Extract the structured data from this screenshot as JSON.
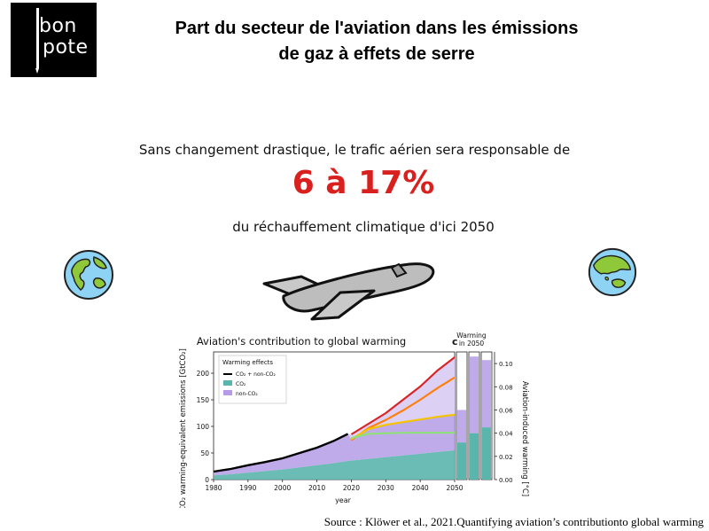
{
  "logo": {
    "line1": "bon",
    "line2": "pote"
  },
  "title": {
    "line1": "Part du secteur de l'aviation dans les émissions",
    "line2": "de gaz à effets de serre"
  },
  "lead_text": "Sans changement drastique, le trafic aérien sera responsable de",
  "highlight": "6 à 17%",
  "tail_text": "du réchauffement climatique d'ici 2050",
  "colors": {
    "highlight": "#d8201e",
    "co2": "#5ab5ac",
    "non_co2": "#b49be6",
    "total": "#000000"
  },
  "icons": [
    "globe-americas-icon",
    "globe-asia-australia-icon",
    "airplane-icon"
  ],
  "chart_data": {
    "type": "area",
    "title": "Aviation's contribution to global warming",
    "xlabel": "year",
    "ylabel": "CO₂ warming-equivalent emissions [GtCO₂]",
    "y2label": "Aviation-induced warming [°C]",
    "panel_label": "c",
    "side_label": "Warming in 2050",
    "legend_title": "Warming effects",
    "legend": [
      "CO₂ + non-CO₂",
      "CO₂",
      "non-CO₂"
    ],
    "xlim": [
      1980,
      2050
    ],
    "ylim": [
      0,
      240
    ],
    "y2lim": [
      0,
      0.11
    ],
    "x_ticks": [
      "1980",
      "1990",
      "2000",
      "2010",
      "2020",
      "2030",
      "2040",
      "2050"
    ],
    "y_ticks": [
      "0",
      "50",
      "100",
      "150",
      "200"
    ],
    "y2_ticks": [
      "0.00",
      "0.02",
      "0.04",
      "0.06",
      "0.08",
      "0.10"
    ],
    "historical": {
      "x": [
        1980,
        1985,
        1990,
        1995,
        2000,
        2005,
        2010,
        2015,
        2019
      ],
      "total": [
        15,
        20,
        27,
        33,
        40,
        50,
        60,
        73,
        86
      ],
      "co2": [
        8,
        10,
        13,
        16,
        19,
        23,
        27,
        31,
        35
      ]
    },
    "scenarios": {
      "x": [
        2020,
        2025,
        2030,
        2035,
        2040,
        2045,
        2050
      ],
      "series": [
        {
          "name": "high",
          "color": "#d62728",
          "values": [
            85,
            105,
            125,
            150,
            175,
            205,
            230
          ]
        },
        {
          "name": "orange",
          "color": "#ff7f0e",
          "values": [
            74,
            97,
            112,
            130,
            150,
            172,
            192
          ]
        },
        {
          "name": "yellow",
          "color": "#f5c400",
          "values": [
            76,
            95,
            103,
            108,
            113,
            118,
            122
          ]
        },
        {
          "name": "green",
          "color": "#90e07a",
          "values": [
            78,
            86,
            87,
            88,
            88,
            88,
            88
          ]
        }
      ]
    },
    "warming_2050": [
      {
        "co2": 0.032,
        "non_co2": 0.028
      },
      {
        "co2": 0.04,
        "non_co2": 0.066
      },
      {
        "co2": 0.045,
        "non_co2": 0.058
      }
    ]
  },
  "source": "Source : Klöwer et al., 2021.Quantifying aviation’s contributionto global warming"
}
